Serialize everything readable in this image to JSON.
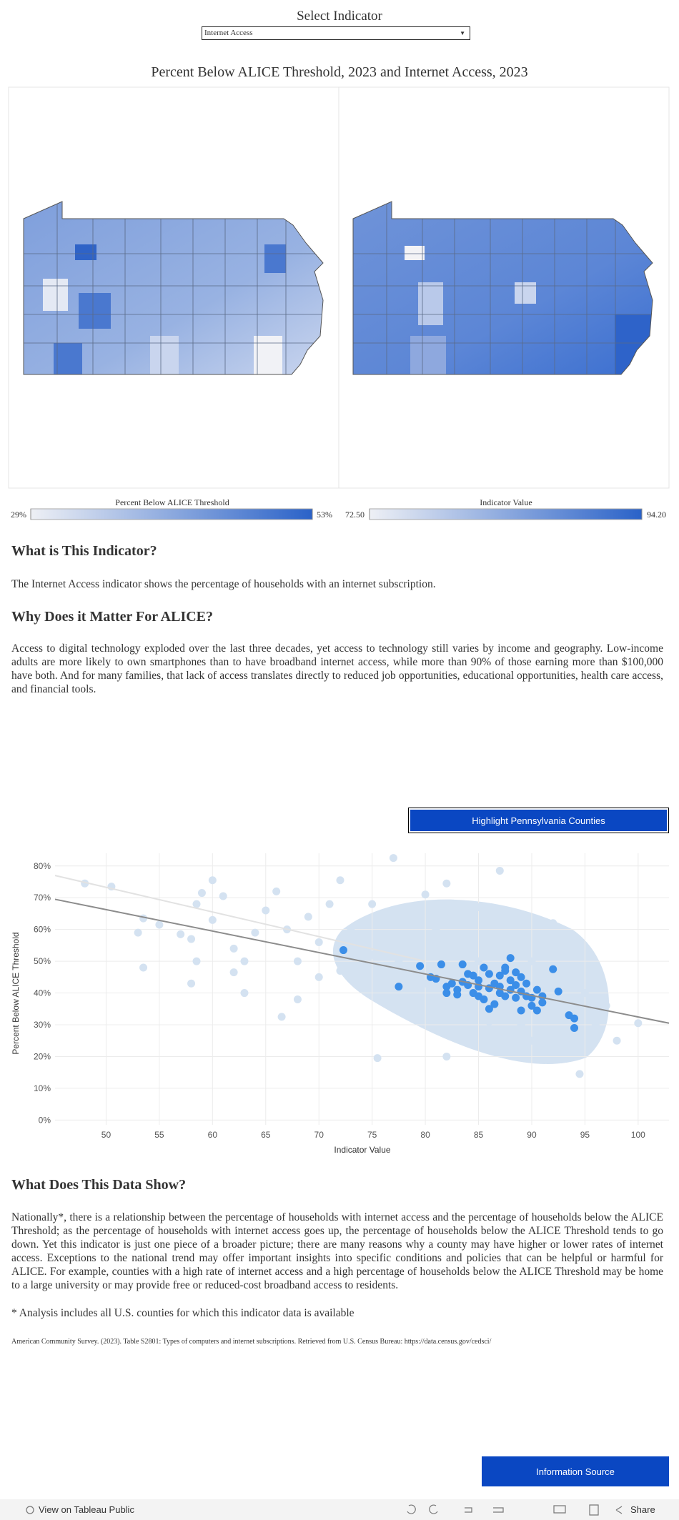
{
  "selector": {
    "label": "Select Indicator",
    "selected": "Internet Access"
  },
  "map": {
    "title": "Percent Below ALICE Threshold, 2023 and Internet Access, 2023",
    "legends": [
      {
        "title": "Percent Below ALICE Threshold",
        "min": {
          "value": 29,
          "label": "29%"
        },
        "max": {
          "value": 53,
          "label": "53%"
        }
      },
      {
        "title": "Indicator Value",
        "min": {
          "value": 72.5,
          "label": "72.50"
        },
        "max": {
          "value": 94.2,
          "label": "94.20"
        }
      }
    ]
  },
  "sections": [
    {
      "heading": "What is This Indicator?",
      "text": "The Internet Access indicator shows the percentage of households with an internet subscription."
    },
    {
      "heading": "Why Does it Matter For ALICE?",
      "text": "Access to digital technology exploded over the last three decades, yet access to technology still varies by income and geography. Low-income adults are more likely to own smartphones than to have broadband internet access, while more than 90% of those earning more than $100,000 have both. And for many families, that lack of access translates directly to reduced job opportunities, educational opportunities, health care access, and financial tools."
    }
  ],
  "highlight_button": "Highlight Pennsylvania Counties",
  "chart_data": {
    "type": "scatter",
    "x_label": "Indicator Value",
    "y_label": "Percent Below ALICE Threshold",
    "xlim": [
      45.2,
      102.9
    ],
    "ylim": [
      -1.5,
      84
    ],
    "xticks": [
      50,
      55,
      60,
      65,
      70,
      75,
      80,
      85,
      90,
      95,
      100
    ],
    "yticks": [
      {
        "value": 0,
        "label": "0%"
      },
      {
        "value": 10,
        "label": "10%"
      },
      {
        "value": 20,
        "label": "20%"
      },
      {
        "value": 30,
        "label": "30%"
      },
      {
        "value": 40,
        "label": "40%"
      },
      {
        "value": 50,
        "label": "50%"
      },
      {
        "value": 60,
        "label": "60%"
      },
      {
        "value": 70,
        "label": "70%"
      },
      {
        "value": 80,
        "label": "80%"
      }
    ],
    "grid": true,
    "series": [
      {
        "color": "#d4e2f1",
        "x": [
          48,
          50.5,
          53,
          53.5,
          53.5,
          55,
          57,
          58,
          58,
          58.5,
          58.5,
          59,
          60,
          60,
          61,
          62,
          62,
          63,
          64,
          65,
          66,
          66.5,
          67,
          68,
          69,
          70,
          71,
          72,
          72,
          73,
          74,
          75,
          75.5,
          76,
          77,
          77.5,
          78,
          79,
          80,
          80.5,
          81,
          82,
          82,
          83,
          84,
          85,
          85,
          86,
          86,
          87,
          88,
          89,
          90,
          91,
          91,
          92,
          93,
          94,
          94.5,
          95,
          96,
          97,
          98,
          100,
          84,
          79,
          76,
          70,
          63,
          68,
          92,
          82,
          86,
          80,
          75,
          88,
          90,
          96
        ],
        "values": [
          74.5,
          73.5,
          59,
          63.5,
          48,
          61.5,
          58.5,
          57,
          43,
          50,
          68,
          71.5,
          63,
          75.5,
          70.5,
          54,
          46.5,
          40,
          59,
          66,
          72,
          32.5,
          60,
          50,
          64,
          56,
          68,
          75.5,
          47,
          60,
          55,
          68,
          19.5,
          62,
          82.5,
          50,
          65,
          58,
          71,
          52,
          60,
          74.5,
          20,
          55,
          62,
          50,
          67,
          57,
          31,
          78.5,
          54,
          30,
          50,
          46,
          28,
          44,
          35,
          52,
          14.5,
          40,
          30,
          36,
          25,
          30.5,
          26,
          37,
          45,
          45,
          50,
          38,
          62,
          35,
          45,
          43,
          52,
          33,
          25,
          26
        ]
      },
      {
        "color": "#3b8ee8",
        "x": [
          72.3,
          77.5,
          79.5,
          80.5,
          81,
          81.5,
          82,
          82,
          82.5,
          83,
          83,
          83.5,
          83.5,
          84,
          84.5,
          84.5,
          85,
          85,
          85.5,
          85.5,
          86,
          86,
          86.5,
          86.5,
          87,
          87,
          87,
          87.5,
          87.5,
          88,
          88,
          88,
          88.5,
          88.5,
          88.5,
          89,
          89,
          89,
          89.5,
          89.5,
          90,
          90,
          90.5,
          90.5,
          91,
          91,
          92,
          92.5,
          93.5,
          94,
          94,
          86,
          84,
          87.5,
          85
        ],
        "values": [
          53.5,
          42,
          48.5,
          45,
          44.5,
          49,
          42,
          40,
          43,
          41,
          39.5,
          49,
          43.5,
          42.5,
          40,
          45.5,
          44,
          42,
          48,
          38,
          46,
          41.5,
          43,
          36.5,
          45.5,
          42,
          40,
          47,
          39,
          44,
          41,
          51,
          46.5,
          42.5,
          38.5,
          45,
          40.5,
          34.5,
          43,
          39,
          38.5,
          36,
          41,
          34.5,
          39,
          37,
          47.5,
          40.5,
          33,
          32,
          29,
          35,
          46,
          48,
          39
        ]
      }
    ],
    "trend_lines": [
      {
        "color": "#e2e2e2",
        "x": [
          45.2,
          80
        ],
        "y": [
          77,
          50
        ]
      },
      {
        "color": "#8c8c8c",
        "x": [
          45.2,
          102.9
        ],
        "y": [
          69.5,
          30.5
        ]
      }
    ]
  },
  "findings": {
    "heading": "What Does This Data Show?",
    "text": "Nationally*, there is a relationship between the percentage of households with internet access and the percentage of households below the ALICE Threshold; as the percentage of households with internet access goes up, the percentage of households below the ALICE Threshold tends to go down. Yet this indicator is just one piece of a broader picture; there are many reasons why a county may have higher or lower rates of internet access. Exceptions to the national trend may offer important insights into specific conditions and policies that can be helpful or harmful for ALICE. For example, counties with a high rate of internet access and a high percentage of households below the ALICE Threshold may be home to a large university or may provide free or reduced-cost broadband access to residents.",
    "footnote": "* Analysis includes all U.S. counties for which this indicator data is available",
    "source": "American Community Survey. (2023). Table S2801: Types of computers and internet subscriptions. Retrieved from U.S. Census Bureau: https://data.census.gov/cedsci/"
  },
  "info_button": "Information Source",
  "toolbar": {
    "view": "View on Tableau Public",
    "share": "Share"
  }
}
